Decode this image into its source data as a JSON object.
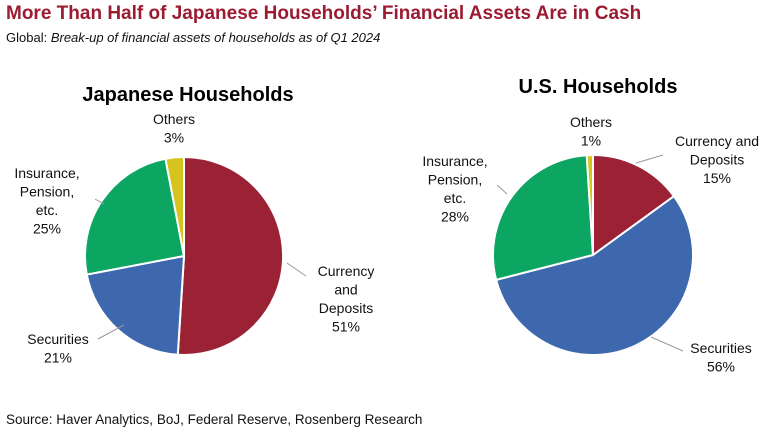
{
  "header": {
    "title": "More Than Half of Japanese Households’ Financial Assets Are in Cash",
    "subtitle_prefix": "Global: ",
    "subtitle_italic": "Break-up of financial assets of households as of Q1 2024"
  },
  "footer": {
    "source": "Source: Haver Analytics, BoJ, Federal Reserve, Rosenberg Research"
  },
  "colors": {
    "currency": "#9b2235",
    "securities": "#3d68ad",
    "insurance": "#0da562",
    "others": "#d5c31e",
    "leader": "#999999"
  },
  "chart_data": [
    {
      "type": "pie",
      "title": "Japanese Households",
      "slices": [
        {
          "label": [
            "Currency",
            "and",
            "Deposits"
          ],
          "value": 51,
          "value_label": "51%",
          "color_key": "currency"
        },
        {
          "label": [
            "Securities"
          ],
          "value": 21,
          "value_label": "21%",
          "color_key": "securities"
        },
        {
          "label": [
            "Insurance,",
            "Pension,",
            "etc."
          ],
          "value": 25,
          "value_label": "25%",
          "color_key": "insurance"
        },
        {
          "label": [
            "Others"
          ],
          "value": 3,
          "value_label": "3%",
          "color_key": "others"
        }
      ]
    },
    {
      "type": "pie",
      "title": "U.S. Households",
      "slices": [
        {
          "label": [
            "Currency and",
            "Deposits"
          ],
          "value": 15,
          "value_label": "15%",
          "color_key": "currency"
        },
        {
          "label": [
            "Securities"
          ],
          "value": 56,
          "value_label": "56%",
          "color_key": "securities"
        },
        {
          "label": [
            "Insurance,",
            "Pension,",
            "etc."
          ],
          "value": 28,
          "value_label": "28%",
          "color_key": "insurance"
        },
        {
          "label": [
            "Others"
          ],
          "value": 1,
          "value_label": "1%",
          "color_key": "others"
        }
      ]
    }
  ]
}
